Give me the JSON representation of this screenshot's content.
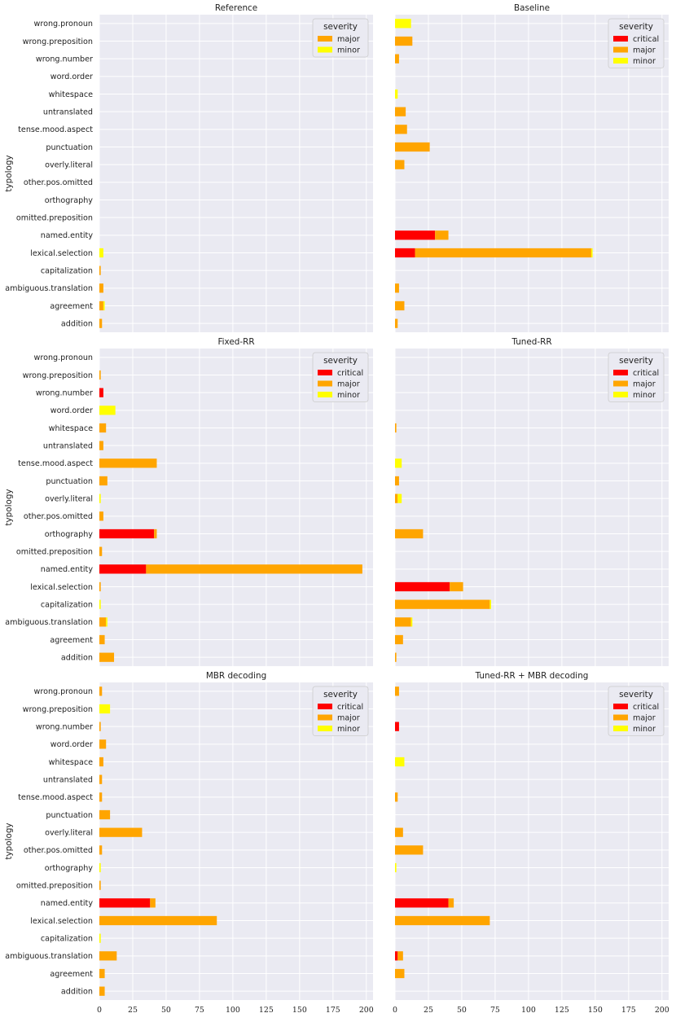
{
  "chart_data": {
    "type": "bar",
    "orientation": "horizontal",
    "stacked": true,
    "ylabel": "typology",
    "xlim": [
      0,
      205
    ],
    "xticks": [
      "0",
      "25",
      "50",
      "75",
      "100",
      "125",
      "150",
      "175",
      "200"
    ],
    "legend_title": "severity",
    "severity_colors": {
      "critical": "#ff0000",
      "major": "#ffa500",
      "minor": "#ffff00"
    },
    "categories": [
      "wrong.pronoun",
      "wrong.preposition",
      "wrong.number",
      "word.order",
      "whitespace",
      "untranslated",
      "tense.mood.aspect",
      "punctuation",
      "overly.literal",
      "other.pos.omitted",
      "orthography",
      "omitted.preposition",
      "named.entity",
      "lexical.selection",
      "capitalization",
      "ambiguous.translation",
      "agreement",
      "addition"
    ],
    "panels": [
      {
        "title": "Reference",
        "legend": [
          "major",
          "minor"
        ],
        "critical": [
          0,
          0,
          0,
          0,
          0,
          0,
          0,
          0,
          0,
          0,
          0,
          0,
          0,
          0,
          0,
          0,
          0,
          0
        ],
        "major": [
          0,
          0,
          0,
          0,
          0,
          0,
          0,
          0,
          0,
          0,
          0,
          0,
          0,
          0,
          1,
          3,
          3,
          2
        ],
        "minor": [
          0,
          0,
          0,
          0,
          0,
          0,
          0,
          0,
          0,
          0,
          0,
          0,
          0,
          3,
          0,
          0,
          1,
          0
        ]
      },
      {
        "title": "Baseline",
        "legend": [
          "critical",
          "major",
          "minor"
        ],
        "critical": [
          0,
          0,
          0,
          0,
          0,
          0,
          0,
          0,
          0,
          0,
          0,
          0,
          30,
          15,
          0,
          0,
          0,
          0
        ],
        "major": [
          0,
          13,
          3,
          0,
          0,
          8,
          9,
          26,
          7,
          0,
          0,
          0,
          10,
          132,
          0,
          3,
          7,
          2
        ],
        "minor": [
          12,
          0,
          0,
          0,
          2,
          0,
          0,
          0,
          0,
          0,
          0,
          0,
          0,
          1,
          0,
          0,
          0,
          0
        ]
      },
      {
        "title": "Fixed-RR",
        "legend": [
          "critical",
          "major",
          "minor"
        ],
        "critical": [
          0,
          0,
          3,
          0,
          0,
          0,
          0,
          0,
          0,
          0,
          41,
          0,
          35,
          0,
          0,
          0,
          0,
          0
        ],
        "major": [
          0,
          1,
          0,
          0,
          5,
          3,
          43,
          6,
          0,
          3,
          2,
          2,
          162,
          1,
          0,
          5,
          4,
          11
        ],
        "minor": [
          0,
          0,
          0,
          12,
          0,
          0,
          0,
          0,
          1,
          0,
          0,
          0,
          0,
          0,
          1,
          1,
          0,
          0
        ]
      },
      {
        "title": "Tuned-RR",
        "legend": [
          "critical",
          "major",
          "minor"
        ],
        "critical": [
          0,
          0,
          0,
          0,
          0,
          0,
          0,
          0,
          0,
          0,
          0,
          0,
          0,
          41,
          0,
          0,
          0,
          0
        ],
        "major": [
          0,
          0,
          0,
          0,
          1,
          0,
          0,
          3,
          2,
          0,
          21,
          0,
          0,
          10,
          71,
          12,
          6,
          1
        ],
        "minor": [
          0,
          0,
          0,
          0,
          0,
          0,
          5,
          0,
          3,
          0,
          0,
          0,
          0,
          0,
          1,
          1,
          0,
          0
        ]
      },
      {
        "title": "MBR decoding",
        "legend": [
          "critical",
          "major",
          "minor"
        ],
        "critical": [
          0,
          0,
          0,
          0,
          0,
          0,
          0,
          0,
          0,
          0,
          0,
          0,
          38,
          0,
          0,
          0,
          0,
          0
        ],
        "major": [
          2,
          0,
          1,
          5,
          3,
          2,
          2,
          8,
          32,
          2,
          0,
          1,
          4,
          88,
          0,
          13,
          4,
          4
        ],
        "minor": [
          0,
          8,
          0,
          0,
          0,
          0,
          0,
          0,
          0,
          0,
          1,
          0,
          0,
          0,
          1,
          0,
          0,
          0
        ]
      },
      {
        "title": "Tuned-RR + MBR decoding",
        "legend": [
          "critical",
          "major",
          "minor"
        ],
        "critical": [
          0,
          0,
          3,
          0,
          0,
          0,
          0,
          0,
          0,
          0,
          0,
          0,
          40,
          0,
          0,
          2,
          0,
          0
        ],
        "major": [
          3,
          0,
          0,
          0,
          0,
          0,
          2,
          0,
          6,
          21,
          0,
          0,
          4,
          71,
          0,
          4,
          7,
          0
        ],
        "minor": [
          0,
          0,
          0,
          0,
          7,
          0,
          0,
          0,
          0,
          0,
          1,
          0,
          0,
          0,
          0,
          0,
          0,
          0
        ]
      }
    ]
  }
}
